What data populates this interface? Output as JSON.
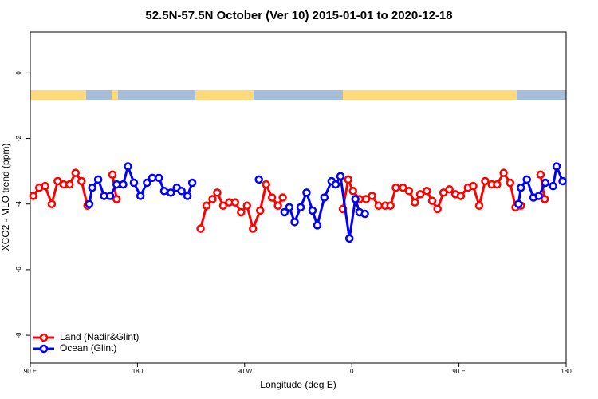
{
  "chart_data": {
    "type": "line",
    "title": "52.5N-57.5N October (Ver 10)   2015-01-01 to 2020-12-18",
    "xlabel": "Longitude (deg E)",
    "ylabel": "XCO2 - MLO trend (ppm)",
    "xlim": [
      90,
      540
    ],
    "xticks": [
      {
        "value": 90,
        "label": "90 E"
      },
      {
        "value": 180,
        "label": "180"
      },
      {
        "value": 270,
        "label": "90 W"
      },
      {
        "value": 360,
        "label": "0"
      },
      {
        "value": 450,
        "label": "90 E"
      },
      {
        "value": 540,
        "label": "180"
      }
    ],
    "ylim": [
      -8.85,
      1.25
    ],
    "yticks": [
      0,
      -2,
      -4,
      -6,
      -8
    ],
    "legend": "bottom-left",
    "series": [
      {
        "name": "Land (Nadir&Glint)",
        "color": "#ff0000",
        "x": [
          92.5,
          97.5,
          102.5,
          108,
          113,
          118,
          123,
          128,
          133,
          138,
          148,
          159,
          162.5,
          200,
          233,
          238,
          243,
          247,
          252,
          257,
          262,
          267,
          272,
          277,
          283,
          288,
          293,
          298,
          302,
          327,
          352.5,
          357,
          361,
          366.5,
          372,
          377,
          382.5,
          388,
          392.5,
          397,
          403,
          408,
          413,
          417.5,
          423,
          427.5,
          432,
          437,
          442,
          447,
          451.5,
          457.5,
          462,
          467,
          472,
          477.5,
          482,
          487.5,
          493,
          497.5,
          502,
          510,
          518.5,
          522
        ],
        "values": [
          -3.75,
          -3.5,
          -3.45,
          -4.0,
          -3.3,
          -3.4,
          -3.4,
          -3.05,
          -3.3,
          -4.05,
          null,
          -3.1,
          -3.85,
          null,
          -4.75,
          -4.05,
          -3.85,
          -3.65,
          -4.05,
          -3.95,
          -3.95,
          -4.25,
          -4.05,
          -4.75,
          -4.2,
          -3.4,
          -3.8,
          -4.05,
          -3.8,
          null,
          -4.15,
          -3.25,
          -3.6,
          -3.85,
          -3.85,
          -3.75,
          -4.05,
          -4.05,
          -4.05,
          -3.5,
          -3.5,
          -3.6,
          -3.95,
          -3.7,
          -3.6,
          -3.9,
          -4.15,
          -3.65,
          -3.55,
          -3.7,
          -3.75,
          -3.5,
          -3.45,
          -4.05,
          -3.3,
          -3.4,
          -3.4,
          -3.05,
          -3.35,
          -4.1,
          -4.05,
          null,
          -3.1,
          -3.85
        ]
      },
      {
        "name": "Ocean (Glint)",
        "color": "#0000ff",
        "x": [
          139.5,
          142,
          147,
          152,
          157,
          162.5,
          168,
          172,
          177,
          182.5,
          188,
          192.5,
          198,
          202.5,
          208,
          213,
          217,
          222,
          226,
          254,
          282,
          293,
          303.5,
          307.5,
          312,
          317,
          322,
          327,
          331,
          337,
          343,
          346.5,
          350.5,
          358,
          363,
          366.5,
          371,
          435,
          500,
          502,
          507,
          512.5,
          517,
          522.5,
          529,
          532,
          537
        ],
        "values": [
          -4.0,
          -3.5,
          -3.25,
          -3.75,
          -3.75,
          -3.4,
          -3.4,
          -2.85,
          -3.35,
          -3.75,
          -3.35,
          -3.2,
          -3.2,
          -3.6,
          -3.65,
          -3.5,
          -3.6,
          -3.75,
          -3.35,
          null,
          -3.25,
          null,
          -4.25,
          -4.1,
          -4.55,
          -4.1,
          -3.65,
          -4.2,
          -4.65,
          -3.8,
          -3.3,
          -3.4,
          -3.15,
          -5.05,
          -3.85,
          -4.25,
          -4.3,
          null,
          -4.0,
          -3.5,
          -3.25,
          -3.8,
          -3.75,
          -3.35,
          -3.45,
          -2.85,
          -3.3
        ]
      }
    ]
  }
}
